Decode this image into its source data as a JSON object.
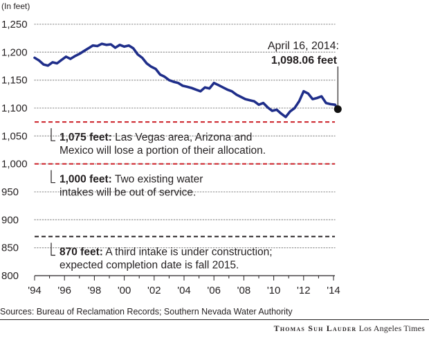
{
  "chart_data": {
    "type": "line",
    "unit_label": "(In feet)",
    "ylim": [
      800,
      1250
    ],
    "xlim": [
      1994,
      2014.5
    ],
    "y_ticks": [
      {
        "value": 1250,
        "label": "1,250"
      },
      {
        "value": 1200,
        "label": "1,200"
      },
      {
        "value": 1150,
        "label": "1,150"
      },
      {
        "value": 1100,
        "label": "1,100"
      },
      {
        "value": 1050,
        "label": "1,050"
      },
      {
        "value": 1000,
        "label": "1,000"
      },
      {
        "value": 950,
        "label": "950"
      },
      {
        "value": 900,
        "label": "900"
      },
      {
        "value": 850,
        "label": "850"
      },
      {
        "value": 800,
        "label": "800"
      }
    ],
    "x_ticks": [
      {
        "value": 1994,
        "label": "'94"
      },
      {
        "value": 1996,
        "label": "'96"
      },
      {
        "value": 1998,
        "label": "'98"
      },
      {
        "value": 2000,
        "label": "'00"
      },
      {
        "value": 2002,
        "label": "'02"
      },
      {
        "value": 2004,
        "label": "'04"
      },
      {
        "value": 2006,
        "label": "'06"
      },
      {
        "value": 2008,
        "label": "'08"
      },
      {
        "value": 2010,
        "label": "'10"
      },
      {
        "value": 2012,
        "label": "'12"
      },
      {
        "value": 2014,
        "label": "'14"
      }
    ],
    "series": [
      {
        "color": "#1f2e8a",
        "x": [
          1994.0,
          1994.3,
          1994.6,
          1994.9,
          1995.2,
          1995.5,
          1995.8,
          1996.1,
          1996.4,
          1996.7,
          1997.0,
          1997.3,
          1997.6,
          1997.9,
          1998.2,
          1998.5,
          1998.8,
          1999.1,
          1999.4,
          1999.7,
          2000.0,
          2000.3,
          2000.6,
          2000.9,
          2001.2,
          2001.5,
          2001.8,
          2002.1,
          2002.4,
          2002.7,
          2003.0,
          2003.3,
          2003.6,
          2003.9,
          2004.2,
          2004.5,
          2004.8,
          2005.1,
          2005.4,
          2005.7,
          2006.0,
          2006.3,
          2006.6,
          2006.9,
          2007.2,
          2007.5,
          2007.8,
          2008.1,
          2008.4,
          2008.7,
          2009.0,
          2009.3,
          2009.6,
          2009.9,
          2010.2,
          2010.5,
          2010.8,
          2011.1,
          2011.4,
          2011.7,
          2012.0,
          2012.3,
          2012.6,
          2012.9,
          2013.2,
          2013.5,
          2013.8,
          2014.1,
          2014.29
        ],
        "y": [
          1190,
          1185,
          1178,
          1176,
          1182,
          1180,
          1186,
          1192,
          1188,
          1193,
          1197,
          1202,
          1207,
          1212,
          1211,
          1215,
          1213,
          1214,
          1208,
          1213,
          1210,
          1212,
          1207,
          1196,
          1190,
          1180,
          1174,
          1170,
          1160,
          1156,
          1150,
          1147,
          1145,
          1140,
          1138,
          1136,
          1133,
          1130,
          1137,
          1135,
          1145,
          1141,
          1137,
          1133,
          1130,
          1124,
          1120,
          1116,
          1114,
          1112,
          1106,
          1109,
          1101,
          1095,
          1097,
          1090,
          1084,
          1094,
          1100,
          1112,
          1130,
          1126,
          1116,
          1118,
          1121,
          1109,
          1107,
          1106,
          1098.06
        ]
      }
    ],
    "callout": {
      "x": 2014.29,
      "y": 1098.06,
      "date": "April 16, 2014:",
      "value": "1,098.06 feet"
    },
    "thresholds": [
      {
        "value": 1075,
        "color": "#cc1f26",
        "bold": "1,075 feet:",
        "line1": " Las Vegas area, Arizona and",
        "line2": "Mexico will lose a portion of their allocation."
      },
      {
        "value": 1000,
        "color": "#cc1f26",
        "bold": "1,000 feet:",
        "line1": " Two existing water",
        "line2": "intakes will be out of service."
      },
      {
        "value": 870,
        "color": "#231f20",
        "bold": "870 feet:",
        "line1": " A third intake is under construction;",
        "line2": "expected completion date is fall 2015."
      }
    ]
  },
  "footer": {
    "sources": "Sources: Bureau of Reclamation Records; Southern Nevada Water Authority",
    "author": "Thomas Suh Lauder",
    "publication": "Los Angeles Times"
  }
}
